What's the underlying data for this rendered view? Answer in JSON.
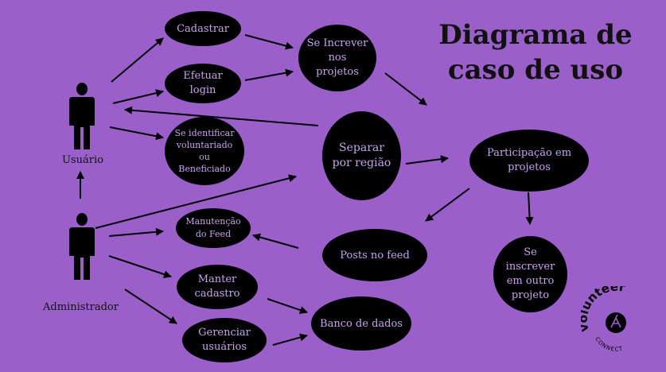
{
  "title": {
    "line1": "Diagrama de",
    "line2": "caso de uso"
  },
  "actors": {
    "usuario": "Usuário",
    "administrador": "Administrador"
  },
  "use_cases": {
    "cadastrar": "Cadastrar",
    "efetuar_login": "Efetuar\nlogin",
    "se_identificar": "Se identificar\nvoluntariado\nou\nBeneficiado",
    "se_increver_projetos": "Se Increver\nnos\nprojetos",
    "separar_regiao": "Separar\npor região",
    "participacao": "Participação em\nprojetos",
    "se_inscrever_outro": "Se\ninscrever\nem outro\nprojeto",
    "manutencao_feed": "Manutenção\ndo Feed",
    "posts_feed": "Posts no feed",
    "manter_cadastro": "Manter\ncadastro",
    "gerenciar_usuarios": "Gerenciar\nusuários",
    "banco_dados": "Banco de dados"
  },
  "logo": {
    "word": "volunteer",
    "sub": "CONNECT"
  },
  "colors": {
    "background": "#9a5fc9",
    "ellipse_fill": "#000000",
    "ellipse_text": "#c9a3ee",
    "line": "#000000"
  }
}
